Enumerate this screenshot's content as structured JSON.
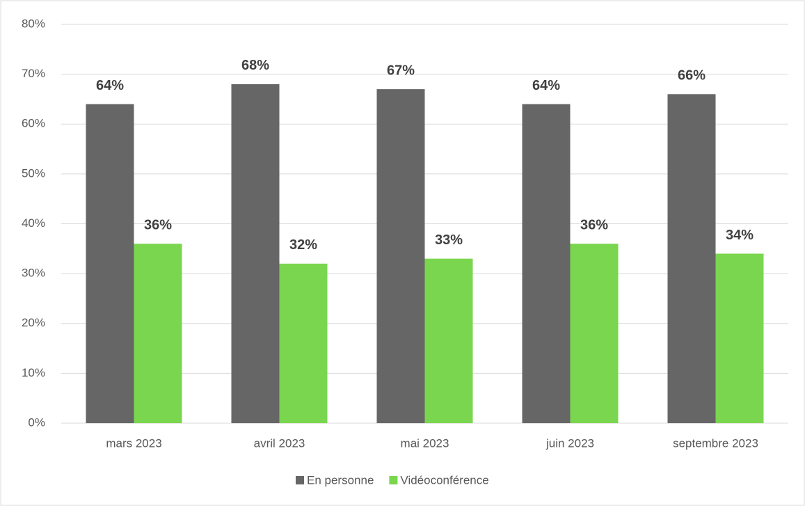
{
  "chart_data": {
    "type": "bar",
    "categories": [
      "mars 2023",
      "avril 2023",
      "mai 2023",
      "juin 2023",
      "septembre 2023"
    ],
    "series": [
      {
        "name": "En personne",
        "color": "#666666",
        "values": [
          64,
          68,
          67,
          64,
          66
        ],
        "value_labels": [
          "64%",
          "68%",
          "67%",
          "64%",
          "66%"
        ]
      },
      {
        "name": "Vidéoconférence",
        "color": "#7ad64e",
        "values": [
          36,
          32,
          33,
          36,
          34
        ],
        "value_labels": [
          "36%",
          "32%",
          "33%",
          "36%",
          "34%"
        ]
      }
    ],
    "ylim": [
      0,
      80
    ],
    "yticks": [
      {
        "value": 0,
        "label": "0%"
      },
      {
        "value": 10,
        "label": "10%"
      },
      {
        "value": 20,
        "label": "20%"
      },
      {
        "value": 30,
        "label": "30%"
      },
      {
        "value": 40,
        "label": "40%"
      },
      {
        "value": 50,
        "label": "50%"
      },
      {
        "value": 60,
        "label": "60%"
      },
      {
        "value": 70,
        "label": "70%"
      },
      {
        "value": 80,
        "label": "80%"
      }
    ],
    "grid": true,
    "legend": "bottom"
  }
}
